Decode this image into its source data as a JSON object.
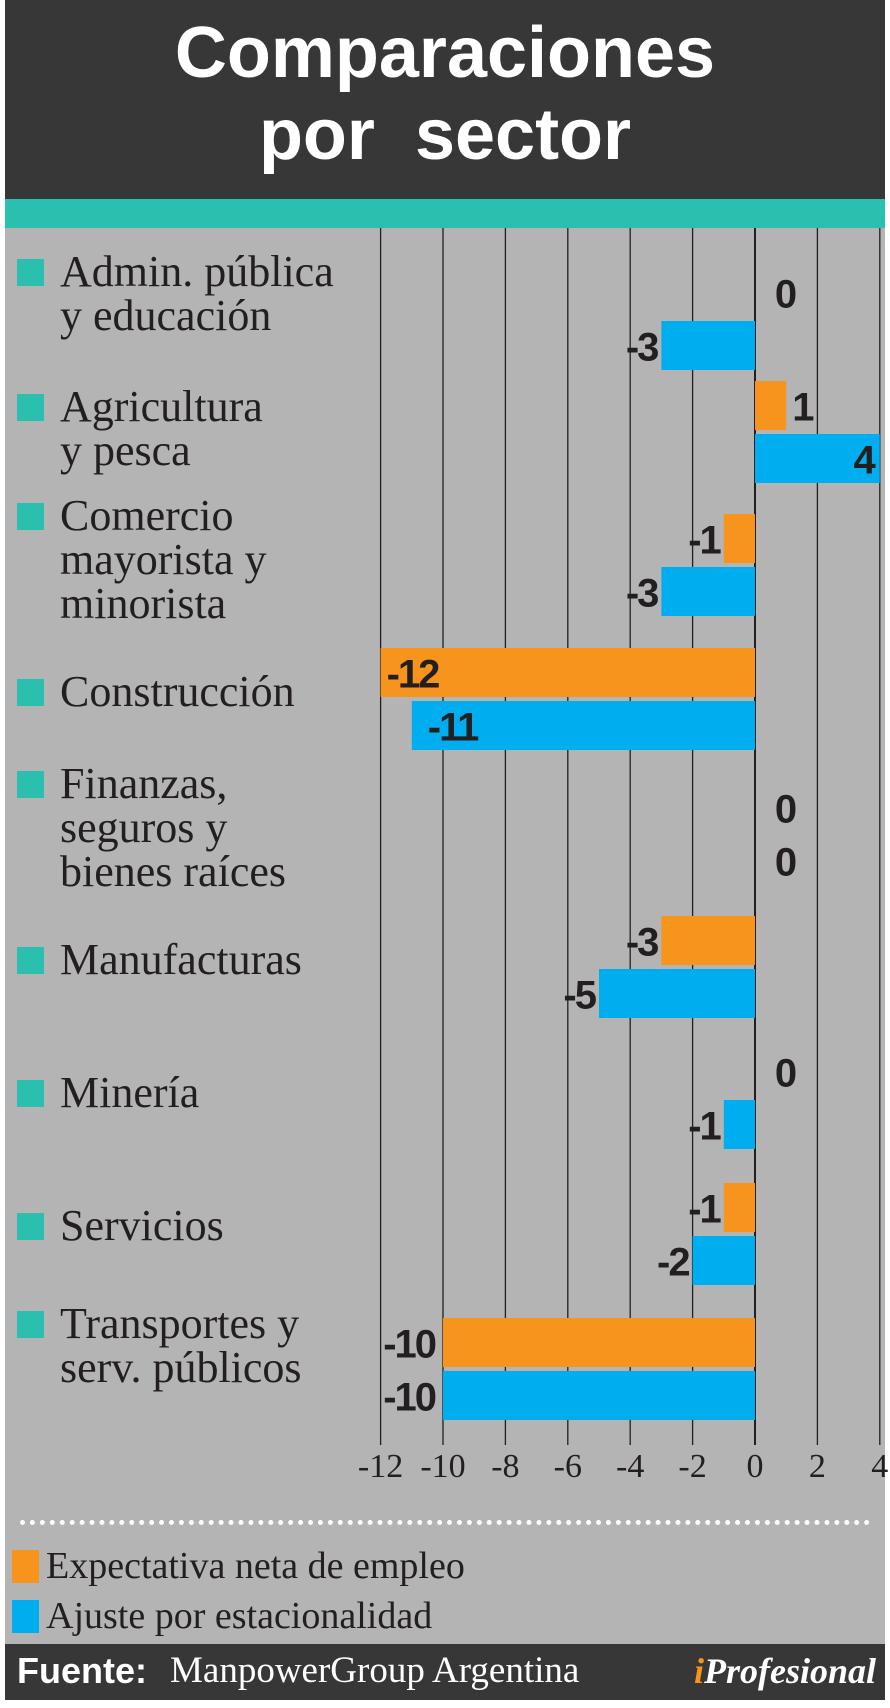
{
  "header": {
    "title_line1": "Comparaciones",
    "title_line2": "por  sector"
  },
  "chart_data": {
    "type": "bar",
    "orientation": "horizontal",
    "title": "Comparaciones por sector",
    "categories": [
      [
        "Admin. pública",
        "y educación"
      ],
      [
        "Agricultura",
        "y pesca"
      ],
      [
        "Comercio",
        "mayorista y",
        "minorista"
      ],
      [
        "Construcción"
      ],
      [
        "Finanzas,",
        "seguros y",
        "bienes raíces"
      ],
      [
        "Manufacturas"
      ],
      [
        "Minería"
      ],
      [
        "Servicios"
      ],
      [
        "Transportes y",
        "serv. públicos"
      ]
    ],
    "series": [
      {
        "name": "Expectativa neta de empleo",
        "color": "#f7941d",
        "values": [
          0,
          1,
          -1,
          -12,
          0,
          -3,
          0,
          -1,
          -10
        ]
      },
      {
        "name": "Ajuste por estacionalidad",
        "color": "#00aeef",
        "values": [
          -3,
          4,
          -3,
          -11,
          0,
          -5,
          -1,
          -2,
          -10
        ]
      }
    ],
    "xlim": [
      -12,
      4
    ],
    "xticks": [
      -12,
      -10,
      -8,
      -6,
      -4,
      -2,
      0,
      2,
      4
    ],
    "grid": true,
    "legend": "bottom-left",
    "category_marker_color": "#2bbfb0"
  },
  "legend": {
    "items": [
      {
        "label": "Expectativa neta de empleo",
        "color": "#f7941d"
      },
      {
        "label": "Ajuste por estacionalidad",
        "color": "#00aeef"
      }
    ]
  },
  "footer": {
    "source_label": "Fuente:",
    "source_value": "ManpowerGroup Argentina",
    "brand_i": "i",
    "brand_rest": "Profesional"
  }
}
